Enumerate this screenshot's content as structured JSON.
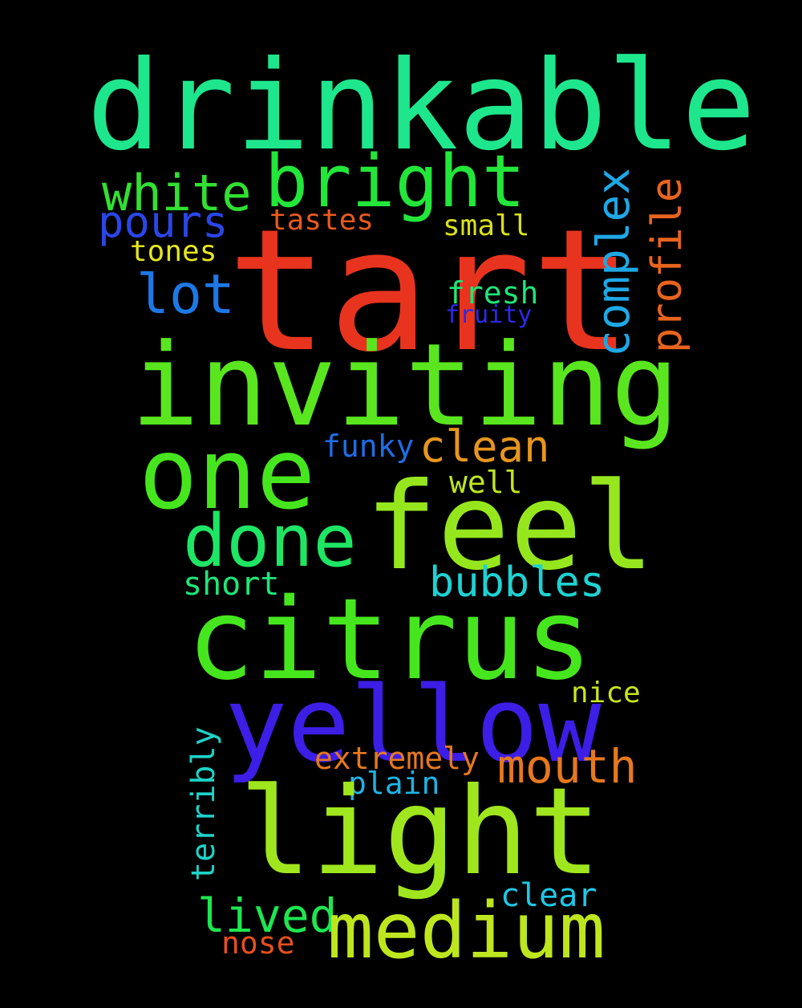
{
  "words": [
    {
      "text": "drinkable",
      "color": "#1ee68c"
    },
    {
      "text": "tart",
      "color": "#e8341e"
    },
    {
      "text": "bright",
      "color": "#23e63a"
    },
    {
      "text": "white",
      "color": "#32e032"
    },
    {
      "text": "pours",
      "color": "#2a46e8"
    },
    {
      "text": "tastes",
      "color": "#e85a1e"
    },
    {
      "text": "small",
      "color": "#d8e01e"
    },
    {
      "text": "tones",
      "color": "#e6e61e"
    },
    {
      "text": "complex",
      "color": "#1ea8e6"
    },
    {
      "text": "profile",
      "color": "#e8641e"
    },
    {
      "text": "lot",
      "color": "#1e78e6"
    },
    {
      "text": "fresh",
      "color": "#1ee678"
    },
    {
      "text": "fruity",
      "color": "#2a2ae8"
    },
    {
      "text": "inviting",
      "color": "#5ae61e"
    },
    {
      "text": "funky",
      "color": "#1e6ee6"
    },
    {
      "text": "clean",
      "color": "#e6961e"
    },
    {
      "text": "one",
      "color": "#46e61e"
    },
    {
      "text": "well",
      "color": "#bee61e"
    },
    {
      "text": "feel",
      "color": "#96e61e"
    },
    {
      "text": "done",
      "color": "#1ee664"
    },
    {
      "text": "short",
      "color": "#1ee678"
    },
    {
      "text": "bubbles",
      "color": "#1ed2d2"
    },
    {
      "text": "citrus",
      "color": "#46e61e"
    },
    {
      "text": "yellow",
      "color": "#3c1ee6"
    },
    {
      "text": "nice",
      "color": "#c8e61e"
    },
    {
      "text": "extremely",
      "color": "#e6781e"
    },
    {
      "text": "mouth",
      "color": "#e6781e"
    },
    {
      "text": "terribly",
      "color": "#1ed2c8"
    },
    {
      "text": "plain",
      "color": "#1eb4e6"
    },
    {
      "text": "light",
      "color": "#a0e61e"
    },
    {
      "text": "clear",
      "color": "#1ec8e6"
    },
    {
      "text": "lived",
      "color": "#1ee650"
    },
    {
      "text": "medium",
      "color": "#bee61e"
    },
    {
      "text": "nose",
      "color": "#e6501e"
    }
  ]
}
